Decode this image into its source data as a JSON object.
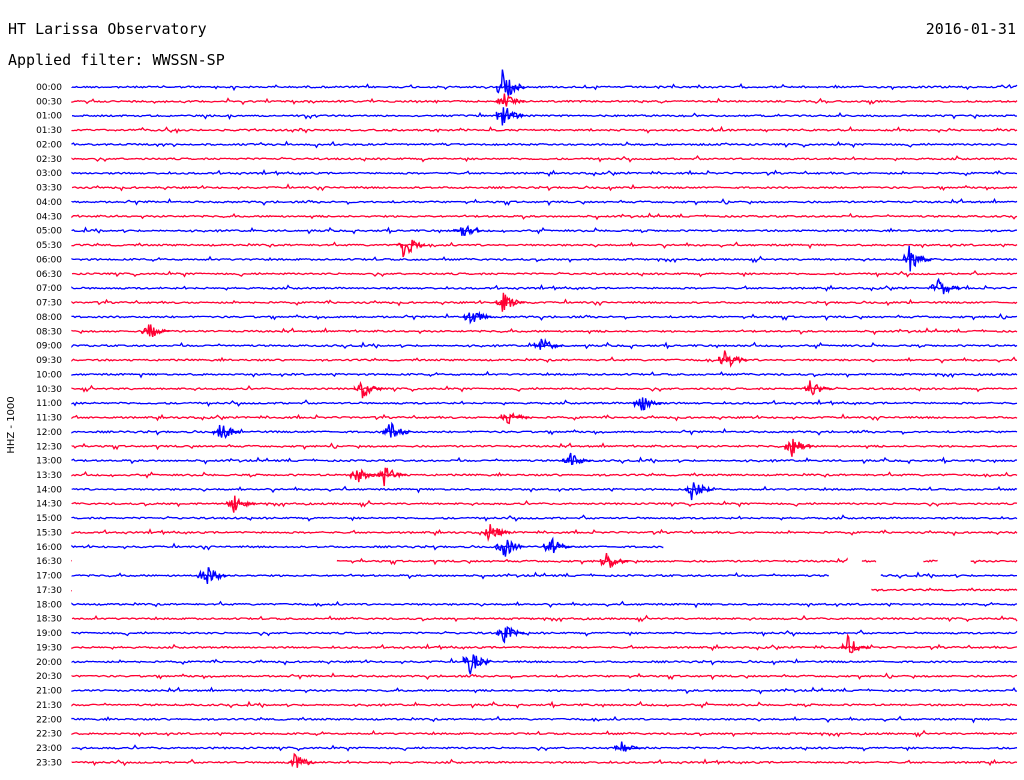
{
  "header": {
    "station": "HT Larissa Observatory",
    "date": "2016-01-31",
    "filter": "Applied filter: WWSSN-SP"
  },
  "chart_data": {
    "type": "line",
    "title": "HT Larissa Observatory",
    "ylabel": "HHZ - 1000",
    "colors": [
      "#0000ff",
      "#ff0033"
    ],
    "time_labels": [
      "00:00",
      "00:30",
      "01:00",
      "01:30",
      "02:00",
      "02:30",
      "03:00",
      "03:30",
      "04:00",
      "04:30",
      "05:00",
      "05:30",
      "06:00",
      "06:30",
      "07:00",
      "07:30",
      "08:00",
      "08:30",
      "09:00",
      "09:30",
      "10:00",
      "10:30",
      "11:00",
      "11:30",
      "12:00",
      "12:30",
      "13:00",
      "13:30",
      "14:00",
      "14:30",
      "15:00",
      "15:30",
      "16:00",
      "16:30",
      "17:00",
      "17:30",
      "18:00",
      "18:30",
      "19:00",
      "19:30",
      "20:00",
      "20:30",
      "21:00",
      "21:30",
      "22:00",
      "22:30",
      "23:00",
      "23:30"
    ],
    "row_minutes": 30,
    "gaps": [
      {
        "row": 32,
        "from": 0.625,
        "to": 1.0
      },
      {
        "row": 33,
        "from": 0.0,
        "to": 0.28
      },
      {
        "row": 33,
        "from": 0.82,
        "to": 0.835
      },
      {
        "row": 33,
        "from": 0.85,
        "to": 0.9
      },
      {
        "row": 33,
        "from": 0.915,
        "to": 0.95
      },
      {
        "row": 34,
        "from": 0.8,
        "to": 0.855
      },
      {
        "row": 35,
        "from": 0.0,
        "to": 0.845
      }
    ],
    "events": [
      {
        "row": 0,
        "pos": 0.455,
        "amp": 18
      },
      {
        "row": 1,
        "pos": 0.455,
        "amp": 10
      },
      {
        "row": 2,
        "pos": 0.455,
        "amp": 14
      },
      {
        "row": 10,
        "pos": 0.41,
        "amp": 10
      },
      {
        "row": 11,
        "pos": 0.35,
        "amp": 16
      },
      {
        "row": 12,
        "pos": 0.885,
        "amp": 14
      },
      {
        "row": 14,
        "pos": 0.915,
        "amp": 12
      },
      {
        "row": 15,
        "pos": 0.455,
        "amp": 12
      },
      {
        "row": 16,
        "pos": 0.42,
        "amp": 12
      },
      {
        "row": 17,
        "pos": 0.08,
        "amp": 10
      },
      {
        "row": 18,
        "pos": 0.495,
        "amp": 10
      },
      {
        "row": 19,
        "pos": 0.69,
        "amp": 12
      },
      {
        "row": 21,
        "pos": 0.305,
        "amp": 12
      },
      {
        "row": 21,
        "pos": 0.78,
        "amp": 10
      },
      {
        "row": 22,
        "pos": 0.6,
        "amp": 12
      },
      {
        "row": 23,
        "pos": 0.46,
        "amp": 10
      },
      {
        "row": 24,
        "pos": 0.155,
        "amp": 14
      },
      {
        "row": 24,
        "pos": 0.335,
        "amp": 12
      },
      {
        "row": 25,
        "pos": 0.76,
        "amp": 12
      },
      {
        "row": 26,
        "pos": 0.525,
        "amp": 10
      },
      {
        "row": 27,
        "pos": 0.3,
        "amp": 10
      },
      {
        "row": 27,
        "pos": 0.33,
        "amp": 12
      },
      {
        "row": 28,
        "pos": 0.655,
        "amp": 12
      },
      {
        "row": 29,
        "pos": 0.17,
        "amp": 12
      },
      {
        "row": 31,
        "pos": 0.44,
        "amp": 12
      },
      {
        "row": 32,
        "pos": 0.455,
        "amp": 14
      },
      {
        "row": 32,
        "pos": 0.505,
        "amp": 12
      },
      {
        "row": 33,
        "pos": 0.565,
        "amp": 12
      },
      {
        "row": 34,
        "pos": 0.14,
        "amp": 16
      },
      {
        "row": 38,
        "pos": 0.455,
        "amp": 12
      },
      {
        "row": 39,
        "pos": 0.82,
        "amp": 12
      },
      {
        "row": 40,
        "pos": 0.42,
        "amp": 14
      },
      {
        "row": 46,
        "pos": 0.58,
        "amp": 8
      },
      {
        "row": 47,
        "pos": 0.235,
        "amp": 10
      }
    ]
  }
}
